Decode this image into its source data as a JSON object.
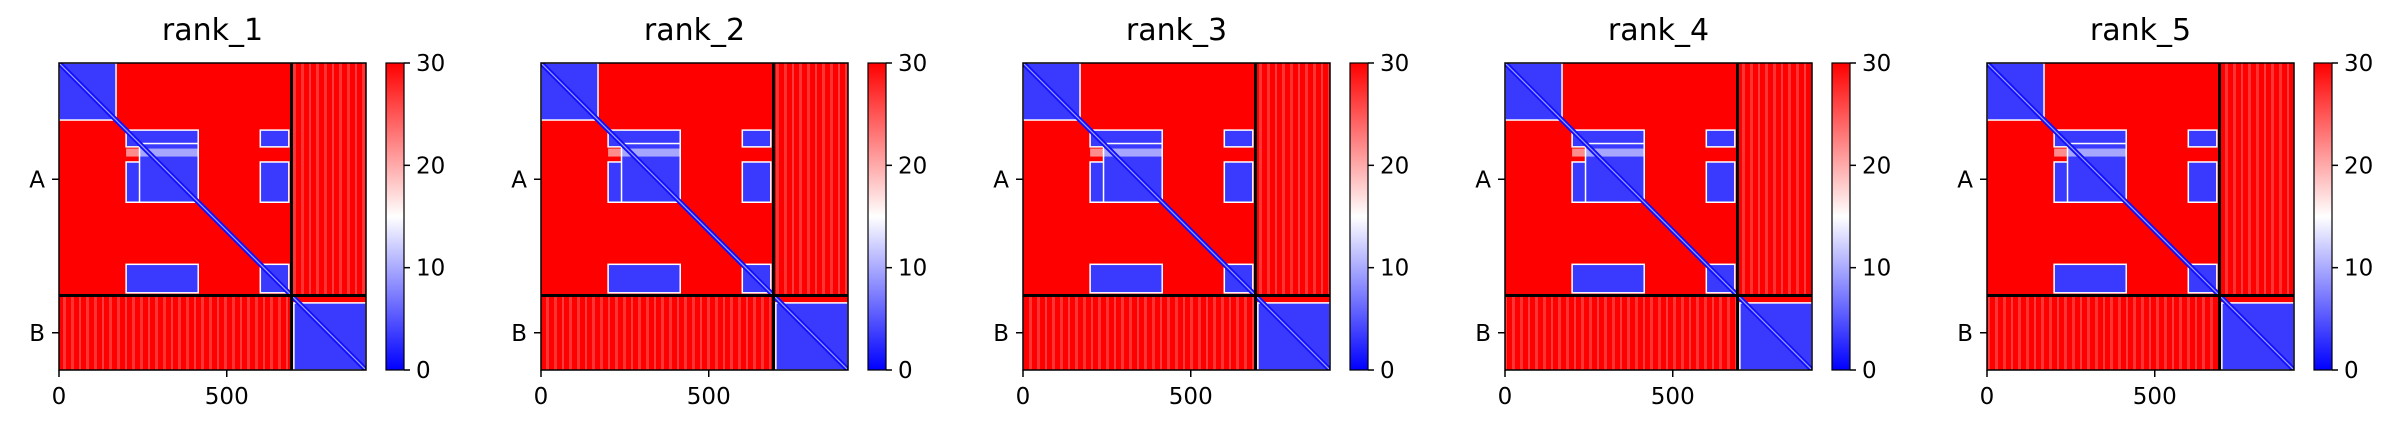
{
  "chart_data": [
    {
      "type": "heatmap",
      "title": "rank_1",
      "chains": [
        "A",
        "B"
      ],
      "chain_lengths": [
        693,
        222
      ],
      "xticks": [
        0,
        500
      ],
      "colorbar": {
        "min": 0,
        "max": 30,
        "ticks": [
          0,
          10,
          20,
          30
        ],
        "colors": [
          "#0000ff",
          "#ffffff",
          "#ff0000"
        ]
      }
    },
    {
      "type": "heatmap",
      "title": "rank_2",
      "chains": [
        "A",
        "B"
      ],
      "chain_lengths": [
        693,
        222
      ],
      "xticks": [
        0,
        500
      ],
      "colorbar": {
        "min": 0,
        "max": 30,
        "ticks": [
          0,
          10,
          20,
          30
        ],
        "colors": [
          "#0000ff",
          "#ffffff",
          "#ff0000"
        ]
      }
    },
    {
      "type": "heatmap",
      "title": "rank_3",
      "chains": [
        "A",
        "B"
      ],
      "chain_lengths": [
        693,
        222
      ],
      "xticks": [
        0,
        500
      ],
      "colorbar": {
        "min": 0,
        "max": 30,
        "ticks": [
          0,
          10,
          20,
          30
        ],
        "colors": [
          "#0000ff",
          "#ffffff",
          "#ff0000"
        ]
      }
    },
    {
      "type": "heatmap",
      "title": "rank_4",
      "chains": [
        "A",
        "B"
      ],
      "chain_lengths": [
        693,
        222
      ],
      "xticks": [
        0,
        500
      ],
      "colorbar": {
        "min": 0,
        "max": 30,
        "ticks": [
          0,
          10,
          20,
          30
        ],
        "colors": [
          "#0000ff",
          "#ffffff",
          "#ff0000"
        ]
      }
    },
    {
      "type": "heatmap",
      "title": "rank_5",
      "chains": [
        "A",
        "B"
      ],
      "chain_lengths": [
        693,
        222
      ],
      "xticks": [
        0,
        500
      ],
      "colorbar": {
        "min": 0,
        "max": 30,
        "ticks": [
          0,
          10,
          20,
          30
        ],
        "colors": [
          "#0000ff",
          "#ffffff",
          "#ff0000"
        ]
      }
    }
  ]
}
